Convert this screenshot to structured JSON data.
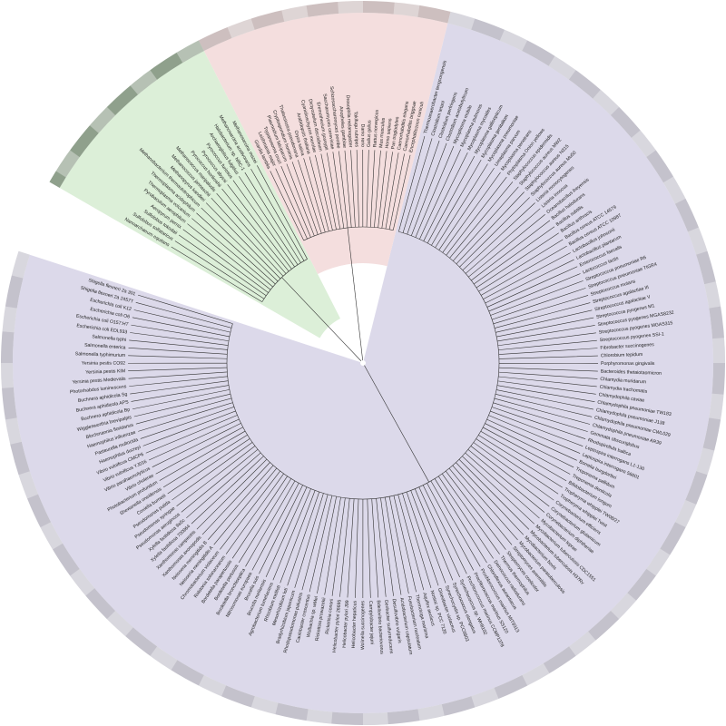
{
  "archaea": [
    "Nanoarchaeum equitans",
    "Sulfolobus solfataricus",
    "Sulfolobus tokodaii",
    "Aeropyrum pernix",
    "Pyrobaculum aerophilum",
    "Thermoplasma volcanium",
    "Thermoplasma acidophilum",
    "Methanobacterium thermautotrophicum",
    "Methanopyrus kandleri",
    "Methanococcus jannaschii",
    "Methanococcus maripaludis",
    "Pyrococcus horikoshii",
    "Pyrococcus abyssi",
    "Pyrococcus furiosus",
    "Archaeoglobus fulgidus",
    "Halobacterium sp. NRC-1",
    "Methanosarcina acetivorans",
    "Methanosarcina mazei"
  ],
  "eukaryota": [
    "Giardia lamblia",
    "Leishmania major",
    "Trypanosoma cruzi",
    "Plasmodium falciparum",
    "Cryptosporidium hominis",
    "Thalassiosira pseudonana",
    "Oryza sativa",
    "Arabidopsis thaliana",
    "Cyanidioschyzon merolae",
    "Dictyostelium discoideum",
    "Eremothecium gossypii",
    "Saccharomyces cerevisiae",
    "Schizosaccharomyces pombe",
    "Anopheles gambiae",
    "Drosophila melanogaster",
    "Takifugu rubripes",
    "Danio rerio",
    "Gallus gallus",
    "Rattus norvegicus",
    "Mus musculus",
    "Homo sapiens",
    "Pan troglodytes",
    "Caenorhabditis elegans",
    "Caenorhabditis briggsae",
    "Encephalitozoon cuniculi"
  ],
  "bacteria": [
    "Thermoanaerobacter tengcongensis",
    "Clostridium tetani",
    "Clostridium perfringens",
    "Clostridium acetobutylicum",
    "Mycoplasma mobile",
    "Mycoplasma pulmonis",
    "Mycoplasma mycoides",
    "Mycoplasma gallisepticum",
    "Mycoplasma genitalium",
    "Mycoplasma pneumoniae",
    "Ureaplasma parvum",
    "Mycoplasma penetrans",
    "Phytoplasma Onion yellows",
    "Staphylococcus epidermidis",
    "Staphylococcus aureus MW2",
    "Staphylococcus aureus N315",
    "Staphylococcus aureus Mu50",
    "Listeria monocytogenes",
    "Listeria innocua",
    "Oceanobacillus iheyensis",
    "Bacillus halodurans",
    "Bacillus subtilis",
    "Bacillus anthracis",
    "Bacillus cereus ATCC 14579",
    "Bacillus cereus ATCC 10987",
    "Lactobacillus johnsonii",
    "Lactobacillus plantarum",
    "Enterococcus faecalis",
    "Lactococcus lactis",
    "Streptococcus pneumoniae R6",
    "Streptococcus pneumoniae TIGR4",
    "Streptococcus mutans",
    "Streptococcus agalactiae III",
    "Streptococcus agalactiae V",
    "Streptococcus pyogenes M1",
    "Streptococcus pyogenes MGAS8232",
    "Streptococcus pyogenes MGAS315",
    "Streptococcus pyogenes SSI-1",
    "Fibrobacter succinogenes",
    "Chlorobium tepidum",
    "Porphyromonas gingivalis",
    "Bacteroides thetaiotaomicron",
    "Chlamydia muridarum",
    "Chlamydia trachomatis",
    "Chlamydophila caviae",
    "Chlamydophila pneumoniae TW183",
    "Chlamydophila pneumoniae J138",
    "Chlamydophila pneumoniae CWL029",
    "Chlamydophila pneumoniae AR39",
    "Gemmata obscuriglobus",
    "Rhodopirellula baltica",
    "Leptospira interrogans L1-130",
    "Leptospira interrogans 56601",
    "Borrelia burgdorferi",
    "Treponema pallidum",
    "Treponema denticola",
    "Bifidobacterium longum",
    "Tropheryma whipplei TW08/27",
    "Tropheryma whipplei Twist",
    "Corynebacterium efficiens",
    "Corynebacterium glutamicum",
    "Corynebacterium diphtheriae",
    "Mycobacterium leprae",
    "Mycobacterium tuberculosis CDC1551",
    "Mycobacterium tuberculosis H37Rv",
    "Mycobacterium bovis",
    "Mycobacterium paratuberculosis",
    "Streptomyces avermitilis",
    "Streptomyces coelicolor",
    "Thermus thermophilus",
    "Deinococcus radiodurans",
    "Chloroflexus aurantiacus",
    "Prochlorococcus marinus MIT9313",
    "Prochlorococcus marinus SS120",
    "Prochlorococcus marinus CCMP1378",
    "Synechococcus sp. WH8102",
    "Synechococcus elongatus",
    "Synechocystis sp. PCC6803",
    "Gloeobacter violaceus",
    "Nostoc sp. PCC 7120",
    "Aquifex aeolicus",
    "Thermotoga maritima",
    "Fusobacterium nucleatum",
    "Acidobacterium capsulatum",
    "Desulfovibrio vulgaris",
    "Geobacter sulfurreducens",
    "Bdellovibrio bacteriovorus",
    "Campylobacter jejuni",
    "Wolinella succinogenes",
    "Helicobacter hepaticus",
    "Helicobacter pylori J99",
    "Helicobacter pylori 26695",
    "Rickettsia conorii",
    "Rickettsia prowazekii",
    "Wolbachia sp. wMel",
    "Caulobacter crescentus",
    "Rhodopseudomonas palustris",
    "Bradyrhizobium japonicum",
    "Mesorhizobium loti",
    "Rhizobium meliloti",
    "Agrobacterium tumefaciens",
    "Brucella melitensis",
    "Brucella suis",
    "Nitrosomonas europaea",
    "Bordetella bronchiseptica",
    "Bordetella pertussis",
    "Bordetella parapertussis",
    "Ralstonia solanacearum",
    "Chromobacterium violaceum",
    "Neisseria meningitidis A",
    "Neisseria meningitidis B",
    "Xanthomonas axonopodis",
    "Xanthomonas campestris",
    "Xylella fastidiosa 700964",
    "Xylella fastidiosa 9a5c",
    "Pseudomonas aeruginosa",
    "Pseudomonas syringae",
    "Pseudomonas putida",
    "Coxiella burnetii",
    "Shewanella oneidensis",
    "Photobacterium profundum",
    "Vibrio cholerae",
    "Vibrio parahaemolyticus",
    "Vibrio vulnificus YJ016",
    "Vibrio vulnificus CMCP6",
    "Haemophilus ducreyi",
    "Pasteurella multocida",
    "Haemophilus influenzae",
    "Blochmannia floridanus",
    "Wigglesworthia brevipalpis",
    "Buchnera aphidicola Bp",
    "Buchnera aphidicola APS",
    "Buchnera aphidicola Sg",
    "Photorhabdus luminescens",
    "Yersinia pestis Medievalis",
    "Yersinia pestis KIM",
    "Yersinia pestis CO92",
    "Salmonella typhimurium",
    "Salmonella enterica",
    "Salmonella typhi",
    "Escherichia coli EDL933",
    "Escherichia coli O157:H7",
    "Escherichia coli O6",
    "Escherichia coli K12",
    "Shigella flexneri 2a 2457T",
    "Shigella flexneri 2a 301"
  ]
}
